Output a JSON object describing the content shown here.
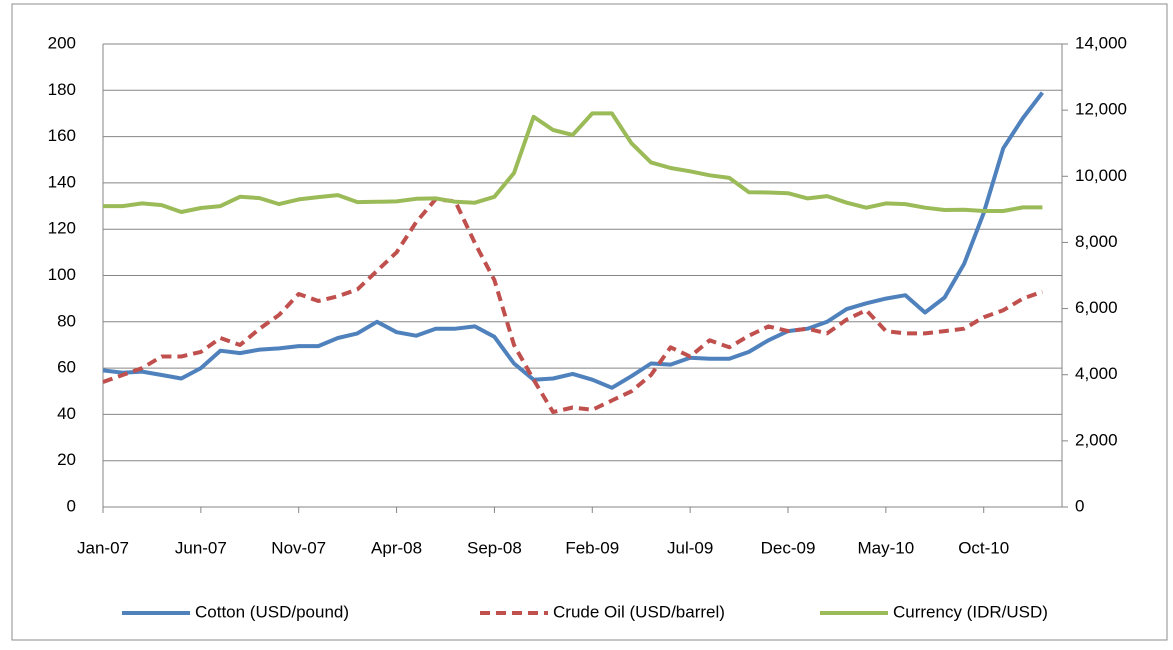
{
  "chart_data": {
    "type": "line",
    "categories": [
      "Jan-07",
      null,
      null,
      null,
      null,
      "Jun-07",
      null,
      null,
      null,
      null,
      "Nov-07",
      null,
      null,
      null,
      null,
      "Apr-08",
      null,
      null,
      null,
      null,
      "Sep-08",
      null,
      null,
      null,
      null,
      "Feb-09",
      null,
      null,
      null,
      null,
      "Jul-09",
      null,
      null,
      null,
      null,
      "Dec-09",
      null,
      null,
      null,
      null,
      "May-10",
      null,
      null,
      null,
      null,
      "Oct-10",
      null,
      null,
      null
    ],
    "series": [
      {
        "name": "Cotton (USD/pound)",
        "color": "#4f81bd",
        "style": "solid",
        "values": [
          59,
          58,
          58.5,
          57,
          55.5,
          60,
          67.5,
          66.5,
          68,
          68.5,
          69.5,
          69.5,
          73,
          75,
          80,
          75.5,
          74,
          77,
          77,
          78,
          73.5,
          62,
          55,
          55.5,
          57.5,
          55,
          51.5,
          56.5,
          62,
          61.5,
          64.5,
          64,
          64,
          67,
          72,
          76,
          77,
          80,
          85.5,
          88,
          90,
          91.5,
          84,
          90.5,
          105,
          127,
          155,
          168,
          179
        ]
      },
      {
        "name": "Crude Oil (USD/barrel)",
        "color": "#c0504d",
        "style": "dashed",
        "values": [
          54,
          57,
          60,
          65,
          65,
          67,
          73,
          70,
          77,
          83,
          92,
          89,
          91,
          94,
          102,
          110,
          123,
          133,
          132,
          114,
          98,
          70,
          55,
          41,
          43,
          42,
          46,
          50,
          57,
          69,
          65,
          72,
          69,
          74,
          78,
          76,
          77,
          75,
          81,
          85,
          76,
          75,
          75,
          76,
          77,
          82,
          85,
          90,
          93
        ]
      },
      {
        "name": "Currency (IDR/USD)",
        "color": "#9bbb59",
        "style": "solid",
        "axis": "y2",
        "values": [
          9100,
          9100,
          9180,
          9130,
          8920,
          9040,
          9100,
          9380,
          9340,
          9160,
          9300,
          9370,
          9430,
          9220,
          9230,
          9240,
          9320,
          9330,
          9230,
          9200,
          9380,
          10100,
          11800,
          11400,
          11250,
          11900,
          11900,
          11000,
          10420,
          10250,
          10150,
          10030,
          9950,
          9520,
          9510,
          9490,
          9330,
          9400,
          9200,
          9050,
          9180,
          9160,
          9050,
          8980,
          8990,
          8950,
          8950,
          9060,
          9060
        ]
      }
    ],
    "ylim": [
      0,
      200
    ],
    "yticks": [
      0,
      20,
      40,
      60,
      80,
      100,
      120,
      140,
      160,
      180,
      200
    ],
    "y2lim": [
      0,
      14000
    ],
    "y2ticks": [
      0,
      {
        "value": 2000,
        "label": "2,000"
      },
      {
        "value": 4000,
        "label": "4,000"
      },
      {
        "value": 6000,
        "label": "6,000"
      },
      {
        "value": 8000,
        "label": "8,000"
      },
      {
        "value": 10000,
        "label": "10,000"
      },
      {
        "value": 12000,
        "label": "12,000"
      },
      {
        "value": 14000,
        "label": "14,000"
      }
    ],
    "grid": true,
    "legend": "bottom"
  }
}
